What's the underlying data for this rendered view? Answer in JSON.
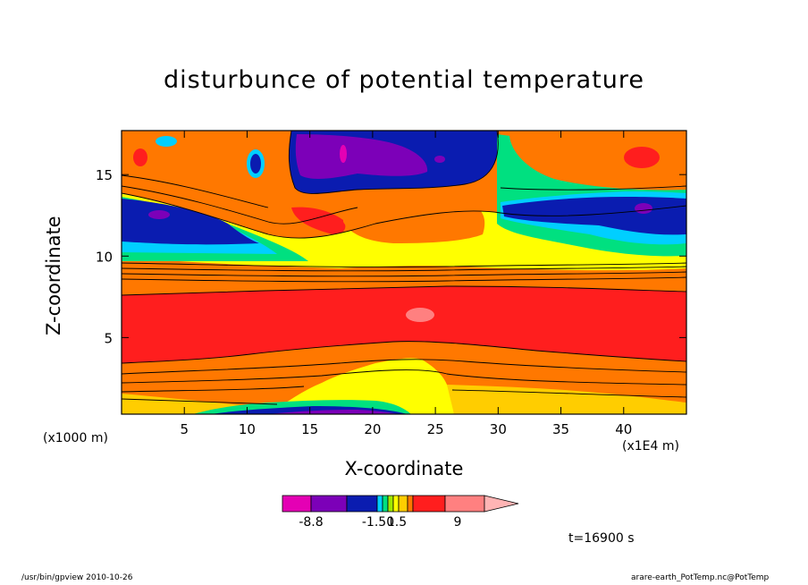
{
  "chart_data": {
    "type": "heatmap",
    "title": "disturbunce of potential temperature",
    "xlabel": "X-coordinate",
    "ylabel": "Z-coordinate",
    "x_unit_note": "(x1000 m)",
    "x_scale_note": "(x1E4 m)",
    "xlim": [
      0,
      45
    ],
    "ylim": [
      0.3,
      17.7
    ],
    "x_ticks": [
      5,
      10,
      15,
      20,
      25,
      30,
      35,
      40
    ],
    "y_ticks": [
      5,
      10,
      15
    ],
    "colorbar": {
      "colors": [
        "#e400b4",
        "#7c00b8",
        "#0a1cb0",
        "#00cfff",
        "#00e080",
        "#a0e800",
        "#ffff00",
        "#ffcd00",
        "#ff7800",
        "#ff1e1e",
        "#ff8080",
        "#ffb4b4"
      ],
      "labels": [
        "-8.8",
        "-1.50",
        "1.5",
        "9"
      ]
    },
    "time_label": "t=16900 s"
  },
  "footer": {
    "left": "/usr/bin/gpview   2010-10-26",
    "right": "arare-earth_PotTemp.nc@PotTemp"
  }
}
